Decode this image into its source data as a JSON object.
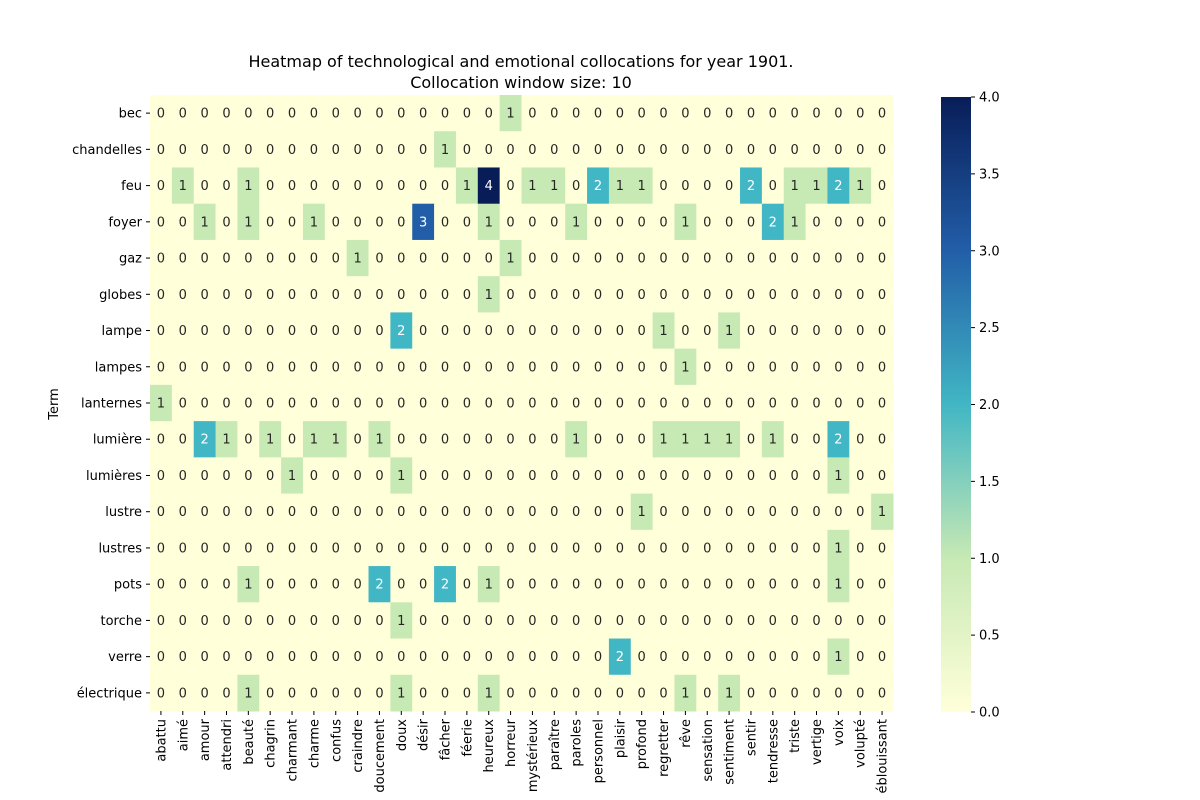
{
  "chart_data": {
    "type": "heatmap",
    "title": "Heatmap of technological and emotional collocations for year 1901.",
    "subtitle": "Collocation window size: 10",
    "ylabel": "Term",
    "xlabel": "",
    "rows": [
      "bec",
      "chandelles",
      "feu",
      "foyer",
      "gaz",
      "globes",
      "lampe",
      "lampes",
      "lanternes",
      "lumière",
      "lumières",
      "lustre",
      "lustres",
      "pots",
      "torche",
      "verre",
      "électrique"
    ],
    "columns": [
      "abattu",
      "aimé",
      "amour",
      "attendri",
      "beauté",
      "chagrin",
      "charmant",
      "charme",
      "confus",
      "craindre",
      "doucement",
      "doux",
      "désir",
      "fâcher",
      "féerie",
      "heureux",
      "horreur",
      "mystérieux",
      "paraître",
      "paroles",
      "personnel",
      "plaisir",
      "profond",
      "regretter",
      "rêve",
      "sensation",
      "sentiment",
      "sentir",
      "tendresse",
      "triste",
      "vertige",
      "voix",
      "volupté",
      "éblouissant"
    ],
    "values": [
      [
        0,
        0,
        0,
        0,
        0,
        0,
        0,
        0,
        0,
        0,
        0,
        0,
        0,
        0,
        0,
        0,
        1,
        0,
        0,
        0,
        0,
        0,
        0,
        0,
        0,
        0,
        0,
        0,
        0,
        0,
        0,
        0,
        0,
        0
      ],
      [
        0,
        0,
        0,
        0,
        0,
        0,
        0,
        0,
        0,
        0,
        0,
        0,
        0,
        1,
        0,
        0,
        0,
        0,
        0,
        0,
        0,
        0,
        0,
        0,
        0,
        0,
        0,
        0,
        0,
        0,
        0,
        0,
        0,
        0
      ],
      [
        0,
        1,
        0,
        0,
        1,
        0,
        0,
        0,
        0,
        0,
        0,
        0,
        0,
        0,
        1,
        4,
        0,
        1,
        1,
        0,
        2,
        1,
        1,
        0,
        0,
        0,
        0,
        2,
        0,
        1,
        1,
        2,
        1,
        0
      ],
      [
        0,
        0,
        1,
        0,
        1,
        0,
        0,
        1,
        0,
        0,
        0,
        0,
        3,
        0,
        0,
        1,
        0,
        0,
        0,
        1,
        0,
        0,
        0,
        0,
        1,
        0,
        0,
        0,
        2,
        1,
        0,
        0,
        0,
        0
      ],
      [
        0,
        0,
        0,
        0,
        0,
        0,
        0,
        0,
        0,
        1,
        0,
        0,
        0,
        0,
        0,
        0,
        1,
        0,
        0,
        0,
        0,
        0,
        0,
        0,
        0,
        0,
        0,
        0,
        0,
        0,
        0,
        0,
        0,
        0
      ],
      [
        0,
        0,
        0,
        0,
        0,
        0,
        0,
        0,
        0,
        0,
        0,
        0,
        0,
        0,
        0,
        1,
        0,
        0,
        0,
        0,
        0,
        0,
        0,
        0,
        0,
        0,
        0,
        0,
        0,
        0,
        0,
        0,
        0,
        0
      ],
      [
        0,
        0,
        0,
        0,
        0,
        0,
        0,
        0,
        0,
        0,
        0,
        2,
        0,
        0,
        0,
        0,
        0,
        0,
        0,
        0,
        0,
        0,
        0,
        1,
        0,
        0,
        1,
        0,
        0,
        0,
        0,
        0,
        0,
        0
      ],
      [
        0,
        0,
        0,
        0,
        0,
        0,
        0,
        0,
        0,
        0,
        0,
        0,
        0,
        0,
        0,
        0,
        0,
        0,
        0,
        0,
        0,
        0,
        0,
        0,
        1,
        0,
        0,
        0,
        0,
        0,
        0,
        0,
        0,
        0
      ],
      [
        1,
        0,
        0,
        0,
        0,
        0,
        0,
        0,
        0,
        0,
        0,
        0,
        0,
        0,
        0,
        0,
        0,
        0,
        0,
        0,
        0,
        0,
        0,
        0,
        0,
        0,
        0,
        0,
        0,
        0,
        0,
        0,
        0,
        0
      ],
      [
        0,
        0,
        2,
        1,
        0,
        1,
        0,
        1,
        1,
        0,
        1,
        0,
        0,
        0,
        0,
        0,
        0,
        0,
        0,
        1,
        0,
        0,
        0,
        1,
        1,
        1,
        1,
        0,
        1,
        0,
        0,
        2,
        0,
        0
      ],
      [
        0,
        0,
        0,
        0,
        0,
        0,
        1,
        0,
        0,
        0,
        0,
        1,
        0,
        0,
        0,
        0,
        0,
        0,
        0,
        0,
        0,
        0,
        0,
        0,
        0,
        0,
        0,
        0,
        0,
        0,
        0,
        1,
        0,
        0
      ],
      [
        0,
        0,
        0,
        0,
        0,
        0,
        0,
        0,
        0,
        0,
        0,
        0,
        0,
        0,
        0,
        0,
        0,
        0,
        0,
        0,
        0,
        0,
        1,
        0,
        0,
        0,
        0,
        0,
        0,
        0,
        0,
        0,
        0,
        1
      ],
      [
        0,
        0,
        0,
        0,
        0,
        0,
        0,
        0,
        0,
        0,
        0,
        0,
        0,
        0,
        0,
        0,
        0,
        0,
        0,
        0,
        0,
        0,
        0,
        0,
        0,
        0,
        0,
        0,
        0,
        0,
        0,
        1,
        0,
        0
      ],
      [
        0,
        0,
        0,
        0,
        1,
        0,
        0,
        0,
        0,
        0,
        2,
        0,
        0,
        2,
        0,
        1,
        0,
        0,
        0,
        0,
        0,
        0,
        0,
        0,
        0,
        0,
        0,
        0,
        0,
        0,
        0,
        1,
        0,
        0
      ],
      [
        0,
        0,
        0,
        0,
        0,
        0,
        0,
        0,
        0,
        0,
        0,
        1,
        0,
        0,
        0,
        0,
        0,
        0,
        0,
        0,
        0,
        0,
        0,
        0,
        0,
        0,
        0,
        0,
        0,
        0,
        0,
        0,
        0,
        0
      ],
      [
        0,
        0,
        0,
        0,
        0,
        0,
        0,
        0,
        0,
        0,
        0,
        0,
        0,
        0,
        0,
        0,
        0,
        0,
        0,
        0,
        0,
        2,
        0,
        0,
        0,
        0,
        0,
        0,
        0,
        0,
        0,
        1,
        0,
        0
      ],
      [
        0,
        0,
        0,
        0,
        1,
        0,
        0,
        0,
        0,
        0,
        0,
        1,
        0,
        0,
        0,
        1,
        0,
        0,
        0,
        0,
        0,
        0,
        0,
        0,
        1,
        0,
        1,
        0,
        0,
        0,
        0,
        0,
        0,
        0
      ]
    ],
    "colorbar": {
      "range": [
        0,
        4
      ],
      "ticks": [
        "0.0",
        "0.5",
        "1.0",
        "1.5",
        "2.0",
        "2.5",
        "3.0",
        "3.5",
        "4.0"
      ],
      "colormap": "YlGnBu"
    }
  }
}
